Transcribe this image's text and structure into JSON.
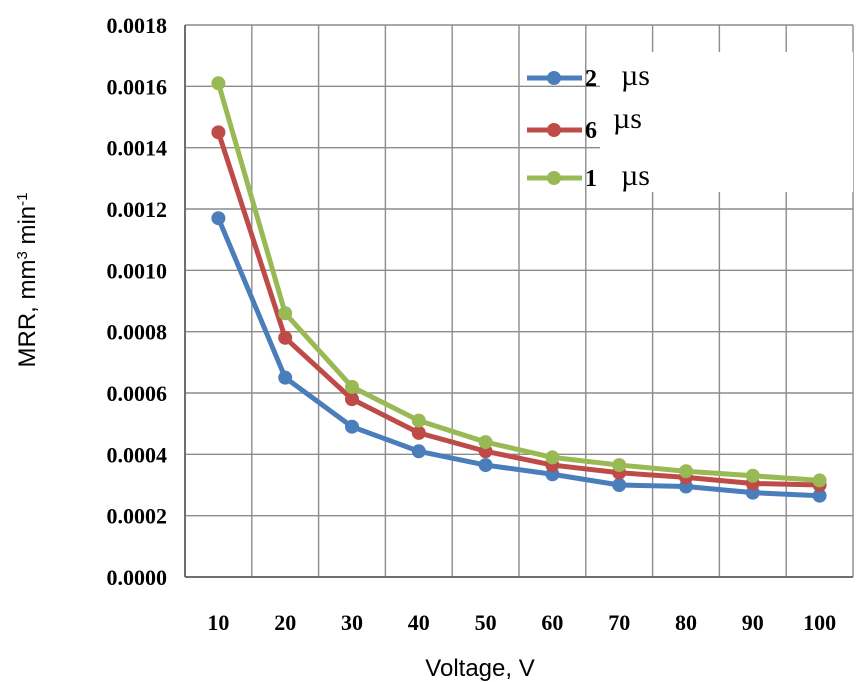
{
  "chart_data": {
    "type": "line",
    "title": "",
    "xlabel": "Voltage, V",
    "ylabel": {
      "base": "MRR, mm",
      "sup1": "3",
      "mid": " min",
      "sup2": "-1"
    },
    "x": [
      10,
      20,
      30,
      40,
      50,
      60,
      70,
      80,
      90,
      100
    ],
    "x_tick_labels": [
      "10",
      "20",
      "30",
      "40",
      "50",
      "60",
      "70",
      "80",
      "90",
      "100"
    ],
    "ylim": [
      0,
      0.0018
    ],
    "y_tick_values": [
      0,
      0.0002,
      0.0004,
      0.0006,
      0.0008,
      0.001,
      0.0012,
      0.0014,
      0.0016,
      0.0018
    ],
    "y_tick_labels": [
      "0.0000",
      "0.0002",
      "0.0004",
      "0.0006",
      "0.0008",
      "0.0010",
      "0.0012",
      "0.0014",
      "0.0016",
      "0.0018"
    ],
    "grid": true,
    "legend_position": "top-right",
    "series": [
      {
        "name": "2",
        "unit": "µs",
        "color": "#4a7ebb",
        "values": [
          0.00117,
          0.00065,
          0.00049,
          0.00041,
          0.000365,
          0.000335,
          0.0003,
          0.000295,
          0.000275,
          0.000265
        ]
      },
      {
        "name": "6",
        "unit": "µs",
        "color": "#be4b48",
        "values": [
          0.00145,
          0.00078,
          0.00058,
          0.00047,
          0.00041,
          0.000365,
          0.00034,
          0.000325,
          0.000305,
          0.0003
        ]
      },
      {
        "name": "1",
        "unit": "µs",
        "color": "#98b954",
        "values": [
          0.00161,
          0.00086,
          0.00062,
          0.00051,
          0.00044,
          0.00039,
          0.000365,
          0.000345,
          0.00033,
          0.000315
        ]
      }
    ]
  }
}
